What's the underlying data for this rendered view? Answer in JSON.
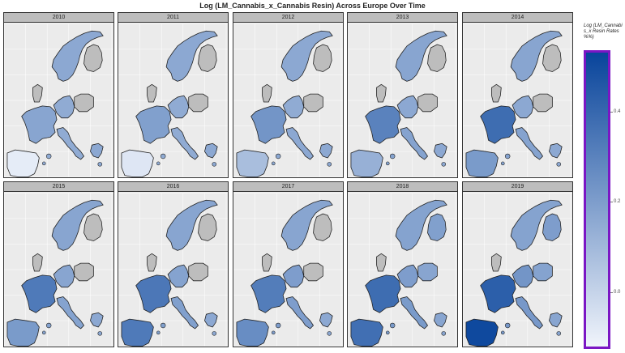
{
  "title": "Log (LM_Cannabis_x_Cannabis Resin) Across Europe Over Time",
  "legend": {
    "title": "Log (LM_Cannabis_x Resin Rates %%)",
    "ticks": [
      {
        "label": "0.4",
        "value": 0.4
      },
      {
        "label": "0.2",
        "value": 0.2
      },
      {
        "label": "0.0",
        "value": 0.0
      }
    ],
    "min": -0.12,
    "max": 0.53,
    "low_color": "#f0f4fb",
    "high_color": "#08449b",
    "border_color": "#7b16c4"
  },
  "colors": {
    "panel_bg": "#ebebeb",
    "strip_bg": "#bdbdbd",
    "no_data": "#bdbdbd",
    "grid": "#ffffff"
  },
  "panels": [
    {
      "year": "2010",
      "values": {
        "scandinavia": 0.16,
        "finland": null,
        "germany": 0.15,
        "poland": null,
        "france": 0.17,
        "italy": 0.15,
        "greece": 0.16,
        "iberia": -0.09,
        "uk": null
      }
    },
    {
      "year": "2011",
      "values": {
        "scandinavia": 0.16,
        "finland": null,
        "germany": 0.15,
        "poland": null,
        "france": 0.19,
        "italy": 0.15,
        "greece": 0.16,
        "iberia": -0.07,
        "uk": null
      }
    },
    {
      "year": "2012",
      "values": {
        "scandinavia": 0.16,
        "finland": null,
        "germany": 0.15,
        "poland": null,
        "france": 0.23,
        "italy": 0.16,
        "greece": 0.16,
        "iberia": 0.08,
        "uk": null
      }
    },
    {
      "year": "2013",
      "values": {
        "scandinavia": 0.17,
        "finland": null,
        "germany": 0.16,
        "poland": null,
        "france": 0.3,
        "italy": 0.18,
        "greece": 0.16,
        "iberia": 0.13,
        "uk": null
      }
    },
    {
      "year": "2014",
      "values": {
        "scandinavia": 0.17,
        "finland": null,
        "germany": 0.16,
        "poland": null,
        "france": 0.38,
        "italy": 0.18,
        "greece": 0.16,
        "iberia": 0.21,
        "uk": null
      }
    },
    {
      "year": "2015",
      "values": {
        "scandinavia": 0.17,
        "finland": null,
        "germany": 0.17,
        "poland": null,
        "france": 0.33,
        "italy": 0.18,
        "greece": 0.16,
        "iberia": 0.21,
        "uk": null
      }
    },
    {
      "year": "2016",
      "values": {
        "scandinavia": 0.17,
        "finland": null,
        "germany": 0.18,
        "poland": null,
        "france": 0.34,
        "italy": 0.19,
        "greece": 0.16,
        "iberia": 0.33,
        "uk": null
      }
    },
    {
      "year": "2017",
      "values": {
        "scandinavia": 0.17,
        "finland": null,
        "germany": 0.2,
        "poland": null,
        "france": 0.32,
        "italy": 0.2,
        "greece": 0.16,
        "iberia": 0.26,
        "uk": null
      }
    },
    {
      "year": "2018",
      "values": {
        "scandinavia": 0.18,
        "finland": 0.19,
        "germany": 0.2,
        "poland": 0.17,
        "france": 0.38,
        "italy": 0.21,
        "greece": 0.17,
        "iberia": 0.37,
        "uk": null
      }
    },
    {
      "year": "2019",
      "values": {
        "scandinavia": 0.18,
        "finland": 0.2,
        "germany": 0.23,
        "poland": 0.18,
        "france": 0.43,
        "italy": 0.22,
        "greece": 0.17,
        "iberia": 0.51,
        "uk": null
      }
    }
  ]
}
